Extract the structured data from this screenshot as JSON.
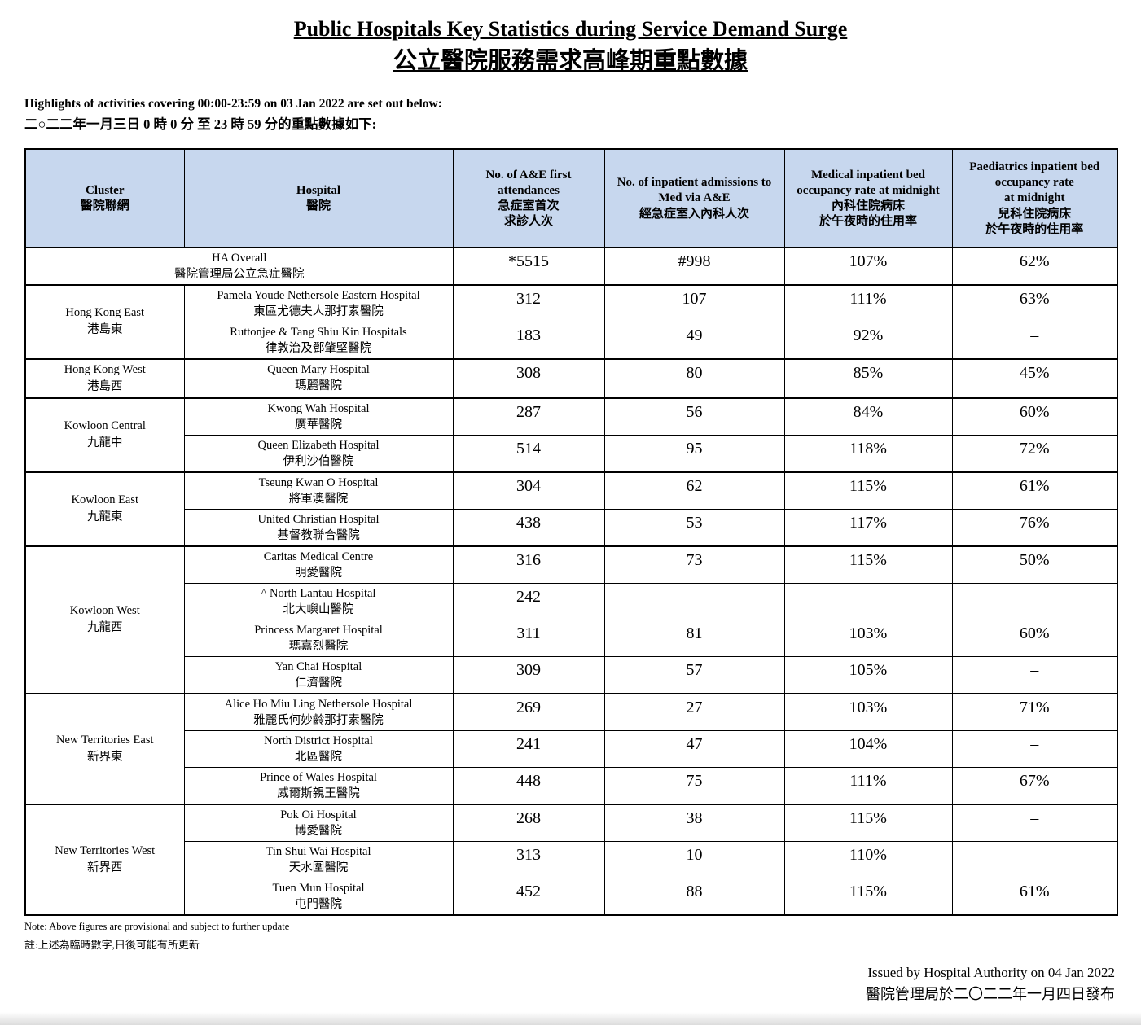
{
  "title_en": "Public Hospitals Key Statistics during Service Demand Surge",
  "title_zh": "公立醫院服務需求高峰期重點數據",
  "intro_en": "Highlights of activities covering 00:00-23:59 on 03 Jan 2022 are set out below:",
  "intro_zh": "二○二二年一月三日 0 時 0 分 至 23 時 59 分的重點數據如下:",
  "table": {
    "headers": [
      {
        "en": "Cluster",
        "zh": "醫院聯網"
      },
      {
        "en": "Hospital",
        "zh": "醫院"
      },
      {
        "en": "No. of A&E first attendances",
        "zh": "急症室首次\n求診人次"
      },
      {
        "en": "No. of inpatient admissions to Med via A&E",
        "zh": "經急症室入內科人次"
      },
      {
        "en": "Medical inpatient bed occupancy rate at midnight",
        "zh": "內科住院病床\n於午夜時的住用率"
      },
      {
        "en": "Paediatrics inpatient bed occupancy rate\nat midnight",
        "zh": "兒科住院病床\n於午夜時的住用率"
      }
    ],
    "overall_row": {
      "name_en": "HA Overall",
      "name_zh": "醫院管理局公立急症醫院",
      "values": [
        "*5515",
        "#998",
        "107%",
        "62%"
      ]
    },
    "clusters": [
      {
        "name_en": "Hong Kong East",
        "name_zh": "港島東",
        "hospitals": [
          {
            "en": "Pamela Youde Nethersole Eastern Hospital",
            "zh": "東區尤德夫人那打素醫院",
            "values": [
              "312",
              "107",
              "111%",
              "63%"
            ]
          },
          {
            "en": "Ruttonjee & Tang Shiu Kin Hospitals",
            "zh": "律敦治及鄧肇堅醫院",
            "values": [
              "183",
              "49",
              "92%",
              "–"
            ]
          }
        ]
      },
      {
        "name_en": "Hong Kong West",
        "name_zh": "港島西",
        "hospitals": [
          {
            "en": "Queen Mary Hospital",
            "zh": "瑪麗醫院",
            "values": [
              "308",
              "80",
              "85%",
              "45%"
            ]
          }
        ]
      },
      {
        "name_en": "Kowloon Central",
        "name_zh": "九龍中",
        "hospitals": [
          {
            "en": "Kwong Wah Hospital",
            "zh": "廣華醫院",
            "values": [
              "287",
              "56",
              "84%",
              "60%"
            ]
          },
          {
            "en": "Queen Elizabeth Hospital",
            "zh": "伊利沙伯醫院",
            "values": [
              "514",
              "95",
              "118%",
              "72%"
            ]
          }
        ]
      },
      {
        "name_en": "Kowloon East",
        "name_zh": "九龍東",
        "hospitals": [
          {
            "en": "Tseung Kwan O Hospital",
            "zh": "將軍澳醫院",
            "values": [
              "304",
              "62",
              "115%",
              "61%"
            ]
          },
          {
            "en": "United Christian Hospital",
            "zh": "基督教聯合醫院",
            "values": [
              "438",
              "53",
              "117%",
              "76%"
            ]
          }
        ]
      },
      {
        "name_en": "Kowloon West",
        "name_zh": "九龍西",
        "hospitals": [
          {
            "en": "Caritas Medical Centre",
            "zh": "明愛醫院",
            "values": [
              "316",
              "73",
              "115%",
              "50%"
            ]
          },
          {
            "en": "^ North Lantau Hospital",
            "zh": "北大嶼山醫院",
            "values": [
              "242",
              "–",
              "–",
              "–"
            ]
          },
          {
            "en": "Princess Margaret Hospital",
            "zh": "瑪嘉烈醫院",
            "values": [
              "311",
              "81",
              "103%",
              "60%"
            ]
          },
          {
            "en": "Yan Chai Hospital",
            "zh": "仁濟醫院",
            "values": [
              "309",
              "57",
              "105%",
              "–"
            ]
          }
        ]
      },
      {
        "name_en": "New Territories East",
        "name_zh": "新界東",
        "hospitals": [
          {
            "en": "Alice Ho Miu Ling Nethersole Hospital",
            "zh": "雅麗氏何妙齡那打素醫院",
            "values": [
              "269",
              "27",
              "103%",
              "71%"
            ]
          },
          {
            "en": "North District Hospital",
            "zh": "北區醫院",
            "values": [
              "241",
              "47",
              "104%",
              "–"
            ]
          },
          {
            "en": "Prince of Wales Hospital",
            "zh": "威爾斯親王醫院",
            "values": [
              "448",
              "75",
              "111%",
              "67%"
            ]
          }
        ]
      },
      {
        "name_en": "New Territories West",
        "name_zh": "新界西",
        "hospitals": [
          {
            "en": "Pok Oi Hospital",
            "zh": "博愛醫院",
            "values": [
              "268",
              "38",
              "115%",
              "–"
            ]
          },
          {
            "en": "Tin Shui Wai Hospital",
            "zh": "天水圍醫院",
            "values": [
              "313",
              "10",
              "110%",
              "–"
            ]
          },
          {
            "en": "Tuen Mun Hospital",
            "zh": "屯門醫院",
            "values": [
              "452",
              "88",
              "115%",
              "61%"
            ]
          }
        ]
      }
    ],
    "value_column_names": [
      "ae-first-attendances",
      "inpatient-admissions",
      "medical-occupancy",
      "paediatrics-occupancy"
    ]
  },
  "note_en": "Note: Above figures are provisional and subject to further update",
  "note_zh": "註:上述為臨時數字,日後可能有所更新",
  "issued_en": "Issued by Hospital Authority on 04 Jan 2022",
  "issued_zh": "醫院管理局於二〇二二年一月四日發布"
}
